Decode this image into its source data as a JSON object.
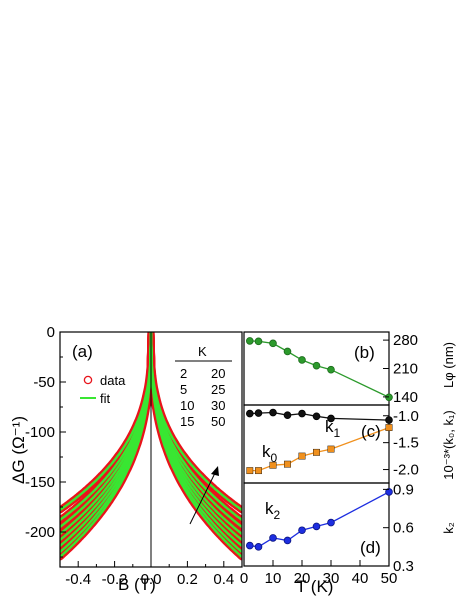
{
  "panel_a": {
    "panel_label": "(a)",
    "xlabel": "B (T)",
    "ylabel": "ΔG (Ω⁻¹)",
    "legend": {
      "data_label": "data",
      "fit_label": "fit"
    },
    "temp_table": {
      "header": "K",
      "col1": [
        "2",
        "5",
        "10",
        "15"
      ],
      "col2": [
        "20",
        "25",
        "30",
        "50"
      ]
    },
    "xticks": [
      "-0.4",
      "-0.2",
      "0.0",
      "0.2",
      "0.4"
    ],
    "yticks": [
      "0",
      "-50",
      "-100",
      "-150",
      "-200"
    ]
  },
  "panel_b": {
    "panel_label": "(b)",
    "ylabel": "Lφ (nm)",
    "yticks": [
      "280",
      "210",
      "140"
    ]
  },
  "panel_c": {
    "panel_label": "(c)",
    "ylabel": "10⁻³*(k₀, k₁)",
    "yticks": [
      "-2.0",
      "-1.5",
      "-1.0"
    ],
    "k1_label": "k",
    "k1_sub": "1",
    "k0_label": "k",
    "k0_sub": "0"
  },
  "panel_d": {
    "panel_label": "(d)",
    "ylabel": "k₂",
    "yticks": [
      "0.9",
      "0.6",
      "0.3"
    ],
    "k2_label": "k",
    "k2_sub": "2",
    "xlabel": "T (K)",
    "xticks": [
      "0",
      "10",
      "20",
      "30",
      "40",
      "50"
    ]
  },
  "colors": {
    "data": "#e8141b",
    "fit": "#39e632",
    "Lphi": "#2c9a2c",
    "k1": "#f0901d",
    "k0": "#111111",
    "k2": "#1d2ee0"
  },
  "chart_data": [
    {
      "type": "line",
      "panel": "a",
      "xlabel": "B (T)",
      "ylabel": "ΔG (Ω⁻¹)",
      "xlim": [
        -0.5,
        0.5
      ],
      "ylim": [
        -235,
        0
      ],
      "series": [
        {
          "name": "2",
          "endpoint_abs_B_0_5": -225
        },
        {
          "name": "5",
          "endpoint_abs_B_0_5": -220
        },
        {
          "name": "10",
          "endpoint_abs_B_0_5": -214
        },
        {
          "name": "15",
          "endpoint_abs_B_0_5": -208
        },
        {
          "name": "20",
          "endpoint_abs_B_0_5": -202
        },
        {
          "name": "25",
          "endpoint_abs_B_0_5": -195
        },
        {
          "name": "30",
          "endpoint_abs_B_0_5": -188
        },
        {
          "name": "50",
          "endpoint_abs_B_0_5": -178
        }
      ]
    },
    {
      "type": "line",
      "panel": "b",
      "ylabel": "Lφ (nm)",
      "ylim": [
        120,
        300
      ],
      "x": [
        2,
        5,
        10,
        15,
        20,
        25,
        30,
        50
      ],
      "values": [
        278,
        277,
        272,
        252,
        231,
        217,
        207,
        139
      ]
    },
    {
      "type": "line",
      "panel": "c",
      "ylabel": "10⁻³*(k₀, k₁)",
      "ylim": [
        -2.25,
        -0.8
      ],
      "x": [
        2,
        5,
        10,
        15,
        20,
        25,
        30,
        50
      ],
      "series": [
        {
          "name": "k1",
          "values": [
            -2.02,
            -2.02,
            -1.92,
            -1.9,
            -1.75,
            -1.68,
            -1.62,
            -1.22
          ]
        },
        {
          "name": "k0",
          "values": [
            -0.96,
            -0.95,
            -0.94,
            -0.99,
            -0.96,
            -1.01,
            -1.05,
            -1.08
          ]
        }
      ]
    },
    {
      "type": "line",
      "panel": "d",
      "ylabel": "k₂",
      "xlabel": "T (K)",
      "ylim": [
        0.3,
        0.95
      ],
      "xlim": [
        0,
        50
      ],
      "x": [
        2,
        5,
        10,
        15,
        20,
        25,
        30,
        50
      ],
      "values": [
        0.46,
        0.45,
        0.52,
        0.5,
        0.58,
        0.61,
        0.64,
        0.88
      ]
    }
  ]
}
